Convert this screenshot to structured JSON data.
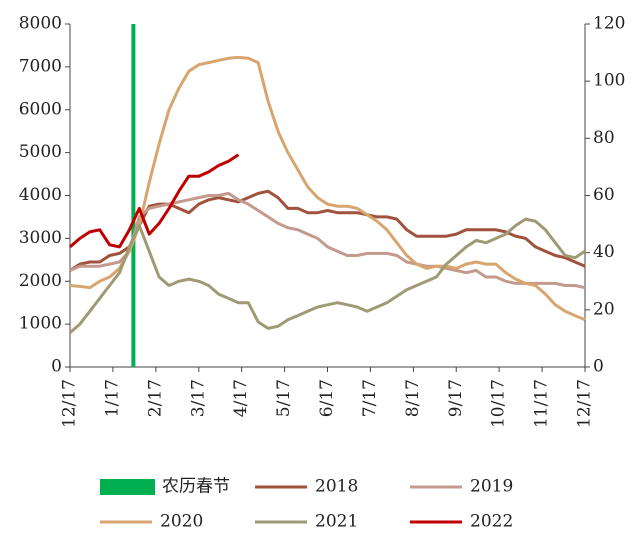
{
  "chart_data": {
    "type": "line",
    "x": [
      0,
      1,
      2,
      3,
      4,
      5,
      6,
      7,
      8,
      9,
      10,
      11,
      12,
      13,
      14,
      15,
      16,
      17,
      18,
      19,
      20,
      21,
      22,
      23,
      24,
      25,
      26,
      27,
      28,
      29,
      30,
      31,
      32,
      33,
      34,
      35,
      36,
      37,
      38,
      39,
      40,
      41,
      42,
      43,
      44,
      45,
      46,
      47,
      48,
      49,
      50,
      51,
      52
    ],
    "xlim": [
      0,
      52
    ],
    "xticks": [
      {
        "value": 0,
        "label": "12/17"
      },
      {
        "value": 4.33,
        "label": "1/17"
      },
      {
        "value": 8.67,
        "label": "2/17"
      },
      {
        "value": 13,
        "label": "3/17"
      },
      {
        "value": 17.33,
        "label": "4/17"
      },
      {
        "value": 21.67,
        "label": "5/17"
      },
      {
        "value": 26,
        "label": "6/17"
      },
      {
        "value": 30.33,
        "label": "7/17"
      },
      {
        "value": 34.67,
        "label": "8/17"
      },
      {
        "value": 39,
        "label": "9/17"
      },
      {
        "value": 43.33,
        "label": "10/17"
      },
      {
        "value": 47.67,
        "label": "11/17"
      },
      {
        "value": 52,
        "label": "12/17"
      }
    ],
    "ylim": [
      0,
      8000
    ],
    "yticks": [
      0,
      1000,
      2000,
      3000,
      4000,
      5000,
      6000,
      7000,
      8000
    ],
    "y2lim": [
      0,
      120
    ],
    "y2ticks": [
      0,
      20,
      40,
      60,
      80,
      100,
      120
    ],
    "marker": {
      "name": "农历春节",
      "x": 6.4,
      "color": "#00b050"
    },
    "series": [
      {
        "name": "2018",
        "color": "#a0523c",
        "values": [
          2250,
          2400,
          2450,
          2450,
          2600,
          2650,
          2800,
          3300,
          3750,
          3800,
          3800,
          3700,
          3600,
          3800,
          3900,
          3950,
          3900,
          3850,
          3950,
          4050,
          4100,
          3950,
          3700,
          3700,
          3600,
          3600,
          3650,
          3600,
          3600,
          3600,
          3550,
          3500,
          3500,
          3450,
          3200,
          3050,
          3050,
          3050,
          3050,
          3100,
          3200,
          3200,
          3200,
          3200,
          3150,
          3050,
          3000,
          2800,
          2700,
          2600,
          2550,
          2450,
          2350
        ]
      },
      {
        "name": "2019",
        "color": "#c49a8e",
        "values": [
          2250,
          2350,
          2350,
          2350,
          2400,
          2450,
          2700,
          3500,
          3700,
          3750,
          3800,
          3850,
          3900,
          3950,
          4000,
          4000,
          4050,
          3900,
          3800,
          3650,
          3500,
          3350,
          3250,
          3200,
          3100,
          3000,
          2800,
          2700,
          2600,
          2600,
          2650,
          2650,
          2650,
          2600,
          2450,
          2400,
          2350,
          2350,
          2300,
          2250,
          2200,
          2250,
          2100,
          2100,
          2000,
          1950,
          1950,
          1950,
          1950,
          1950,
          1900,
          1900,
          1850
        ]
      },
      {
        "name": "2020",
        "color": "#d9a56e",
        "values": [
          1900,
          1880,
          1850,
          2000,
          2100,
          2300,
          2700,
          3300,
          4300,
          5200,
          6000,
          6500,
          6900,
          7050,
          7100,
          7150,
          7200,
          7220,
          7200,
          7100,
          6200,
          5500,
          5000,
          4600,
          4200,
          3950,
          3800,
          3750,
          3750,
          3700,
          3550,
          3400,
          3200,
          2900,
          2600,
          2400,
          2300,
          2350,
          2350,
          2300,
          2400,
          2450,
          2400,
          2400,
          2200,
          2050,
          1950,
          1900,
          1700,
          1450,
          1300,
          1200,
          1100
        ]
      },
      {
        "name": "2021",
        "color": "#9e9a74",
        "values": [
          800,
          1000,
          1300,
          1600,
          1900,
          2200,
          2800,
          3300,
          2700,
          2100,
          1900,
          2000,
          2050,
          2000,
          1900,
          1700,
          1600,
          1500,
          1500,
          1050,
          900,
          950,
          1100,
          1200,
          1300,
          1400,
          1450,
          1500,
          1450,
          1400,
          1300,
          1400,
          1500,
          1650,
          1800,
          1900,
          2000,
          2100,
          2400,
          2600,
          2800,
          2950,
          2900,
          3000,
          3100,
          3300,
          3450,
          3400,
          3200,
          2900,
          2600,
          2550,
          2700
        ]
      },
      {
        "name": "2022",
        "color": "#c00000",
        "values": [
          2800,
          3000,
          3150,
          3200,
          2850,
          2800,
          3200,
          3700,
          3100,
          3350,
          3700,
          4100,
          4450,
          4450,
          4550,
          4700,
          4800,
          4950,
          null,
          null,
          null,
          null,
          null,
          null,
          null,
          null,
          null,
          null,
          null,
          null,
          null,
          null,
          null,
          null,
          null,
          null,
          null,
          null,
          null,
          null,
          null,
          null,
          null,
          null,
          null,
          null,
          null,
          null,
          null,
          null,
          null,
          null,
          null
        ]
      }
    ]
  }
}
